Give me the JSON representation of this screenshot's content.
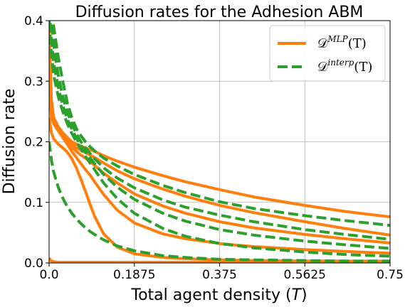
{
  "chart_data": {
    "type": "line",
    "title": "Diffusion rates for the Adhesion ABM",
    "xlabel": "Total agent density (",
    "xlabel_var": "T",
    "xlabel_close": ")",
    "ylabel": "Diffusion rate",
    "xlim": [
      0,
      0.75
    ],
    "ylim": [
      0,
      0.4
    ],
    "xticks": [
      0,
      0.1875,
      0.375,
      0.5625,
      0.75
    ],
    "xtick_labels": [
      "0.0",
      "0.1875",
      "0.375",
      "0.5625",
      "0.75"
    ],
    "yticks": [
      0,
      0.1,
      0.2,
      0.3,
      0.4
    ],
    "ytick_labels": [
      "0.0",
      "0.1",
      "0.2",
      "0.3",
      "0.4"
    ],
    "grid": true,
    "legend": {
      "placement": "top-right",
      "entries": [
        {
          "base": "𝒟",
          "sup": "MLP",
          "suffix": "(T)",
          "style": "solid",
          "color": "#ff7f0e"
        },
        {
          "base": "𝒟",
          "sup": "interp",
          "suffix": "(T)",
          "style": "dashed",
          "color": "#2ca02c"
        }
      ]
    },
    "colors": {
      "mlp": "#ff7f0e",
      "interp": "#2ca02c"
    },
    "x": [
      0.0,
      0.005,
      0.01,
      0.02,
      0.03,
      0.04,
      0.05,
      0.06,
      0.07,
      0.08,
      0.09,
      0.1,
      0.12,
      0.15,
      0.1875,
      0.25,
      0.3,
      0.375,
      0.45,
      0.5625,
      0.65,
      0.75
    ],
    "series": [
      {
        "group": "mlp",
        "values": [
          0.39,
          0.27,
          0.24,
          0.225,
          0.215,
          0.207,
          0.2,
          0.196,
          0.193,
          0.19,
          0.187,
          0.184,
          0.177,
          0.168,
          0.158,
          0.144,
          0.134,
          0.121,
          0.109,
          0.095,
          0.085,
          0.076
        ]
      },
      {
        "group": "mlp",
        "values": [
          0.36,
          0.25,
          0.235,
          0.222,
          0.212,
          0.203,
          0.196,
          0.19,
          0.186,
          0.182,
          0.178,
          0.174,
          0.165,
          0.152,
          0.139,
          0.122,
          0.11,
          0.095,
          0.083,
          0.068,
          0.057,
          0.046
        ]
      },
      {
        "group": "mlp",
        "values": [
          0.33,
          0.245,
          0.232,
          0.22,
          0.21,
          0.2,
          0.191,
          0.184,
          0.178,
          0.173,
          0.167,
          0.161,
          0.148,
          0.132,
          0.114,
          0.094,
          0.082,
          0.068,
          0.058,
          0.047,
          0.04,
          0.033
        ]
      },
      {
        "group": "mlp",
        "values": [
          0.3,
          0.24,
          0.23,
          0.218,
          0.207,
          0.196,
          0.184,
          0.174,
          0.164,
          0.154,
          0.145,
          0.134,
          0.113,
          0.087,
          0.066,
          0.048,
          0.04,
          0.032,
          0.027,
          0.022,
          0.019,
          0.016
        ]
      },
      {
        "group": "mlp",
        "values": [
          0.24,
          0.215,
          0.205,
          0.196,
          0.19,
          0.183,
          0.172,
          0.157,
          0.138,
          0.118,
          0.097,
          0.077,
          0.048,
          0.026,
          0.015,
          0.009,
          0.007,
          0.005,
          0.004,
          0.003,
          0.003,
          0.003
        ]
      },
      {
        "group": "mlp",
        "values": [
          0.008,
          0.003,
          0.002,
          0.001,
          0.001,
          0.001,
          0.001,
          0.001,
          0.001,
          0.001,
          0.001,
          0.001,
          0.001,
          0.001,
          0.001,
          0.001,
          0.001,
          0.001,
          0.001,
          0.001,
          0.001,
          0.001
        ]
      },
      {
        "group": "interp",
        "values": [
          0.44,
          0.42,
          0.39,
          0.34,
          0.3,
          0.265,
          0.24,
          0.222,
          0.21,
          0.2,
          0.192,
          0.185,
          0.173,
          0.16,
          0.146,
          0.128,
          0.116,
          0.101,
          0.09,
          0.078,
          0.07,
          0.062
        ]
      },
      {
        "group": "interp",
        "values": [
          0.44,
          0.4,
          0.36,
          0.31,
          0.275,
          0.25,
          0.23,
          0.213,
          0.2,
          0.19,
          0.181,
          0.172,
          0.157,
          0.14,
          0.124,
          0.104,
          0.092,
          0.079,
          0.068,
          0.055,
          0.047,
          0.039
        ]
      },
      {
        "group": "interp",
        "values": [
          0.42,
          0.37,
          0.33,
          0.29,
          0.26,
          0.238,
          0.221,
          0.206,
          0.194,
          0.183,
          0.173,
          0.164,
          0.146,
          0.125,
          0.105,
          0.082,
          0.069,
          0.055,
          0.046,
          0.036,
          0.03,
          0.024
        ]
      },
      {
        "group": "interp",
        "values": [
          0.4,
          0.345,
          0.31,
          0.275,
          0.25,
          0.23,
          0.214,
          0.2,
          0.188,
          0.176,
          0.165,
          0.154,
          0.132,
          0.106,
          0.082,
          0.057,
          0.044,
          0.032,
          0.025,
          0.018,
          0.014,
          0.011
        ]
      },
      {
        "group": "interp",
        "values": [
          0.2,
          0.17,
          0.15,
          0.125,
          0.107,
          0.093,
          0.082,
          0.073,
          0.065,
          0.058,
          0.052,
          0.047,
          0.038,
          0.028,
          0.02,
          0.012,
          0.009,
          0.006,
          0.005,
          0.004,
          0.003,
          0.003
        ]
      }
    ]
  }
}
